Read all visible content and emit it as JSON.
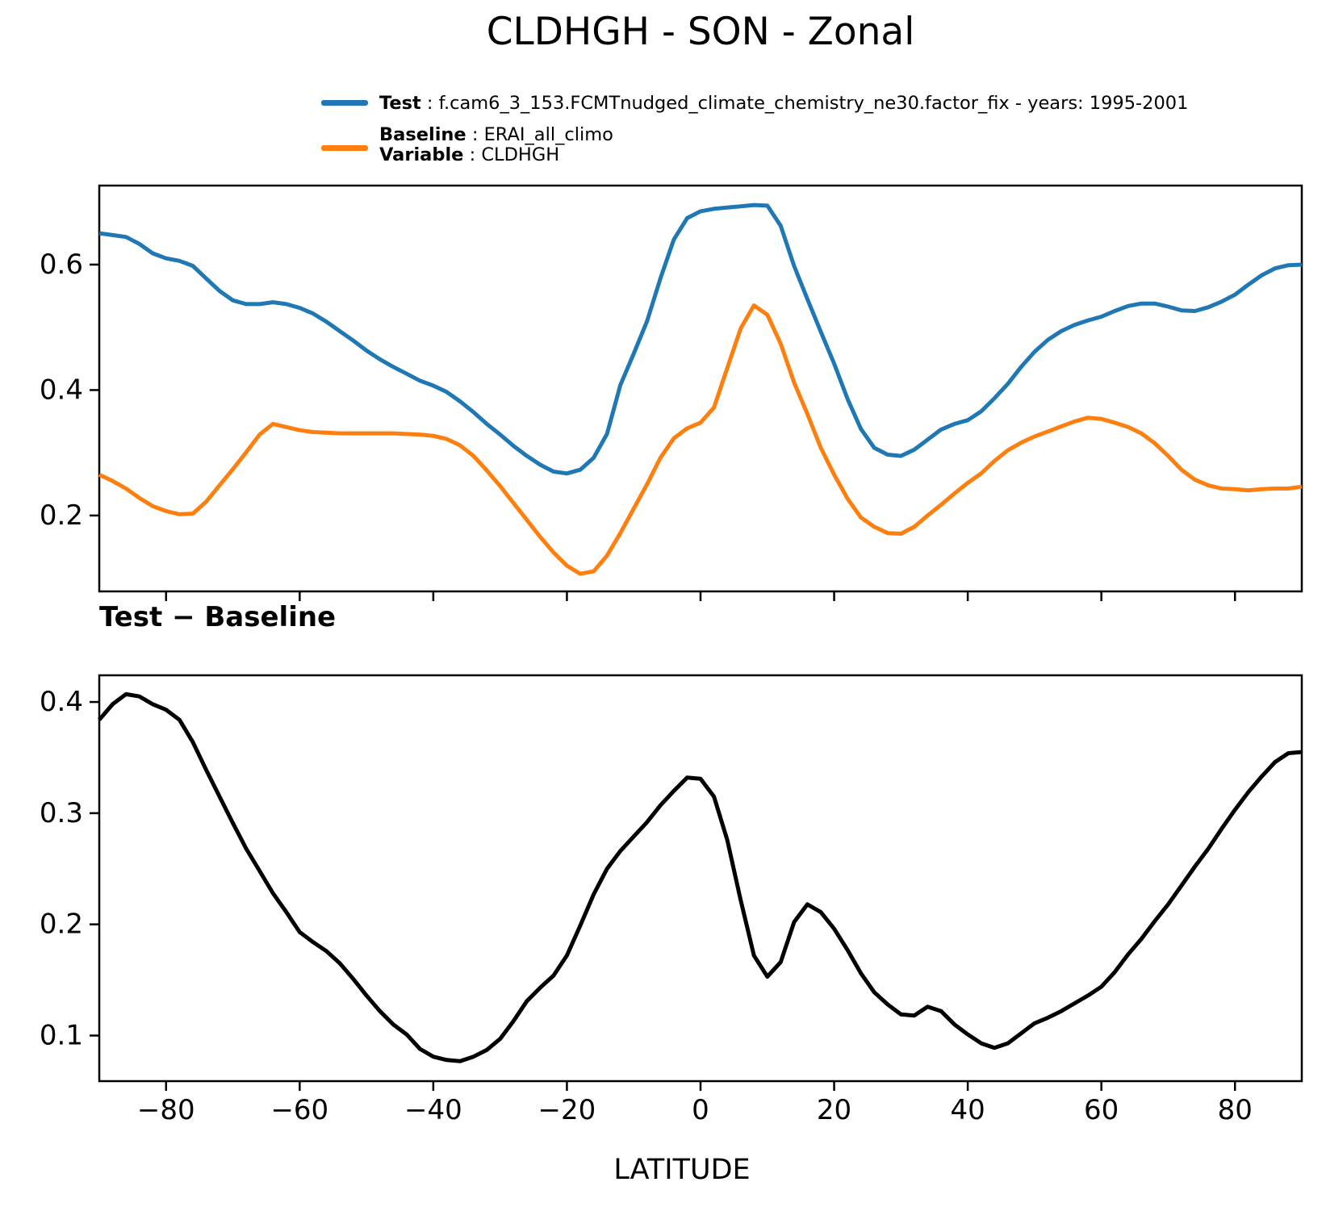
{
  "title": "CLDHGH - SON - Zonal",
  "legend": {
    "test_label": "Test",
    "test_rest": " : f.cam6_3_153.FCMTnudged_climate_chemistry_ne30.factor_fix - years: 1995-2001",
    "baseline_label": "Baseline",
    "baseline_rest": " : ERAI_all_climo",
    "variable_label": "Variable",
    "variable_rest": " : CLDHGH"
  },
  "colors": {
    "test": "#1f77b4",
    "baseline": "#ff7f0e",
    "diff": "#000000"
  },
  "chart_data": [
    {
      "type": "line",
      "title": "",
      "xlabel": "",
      "ylabel": "",
      "xlim": [
        -90,
        90
      ],
      "ylim": [
        0.079,
        0.726
      ],
      "xticks": [
        -80,
        -60,
        -40,
        -20,
        0,
        20,
        40,
        60,
        80
      ],
      "xtick_labels_visible": false,
      "yticks": [
        0.2,
        0.4,
        0.6
      ],
      "grid": false,
      "legend_position": "above-figure",
      "x": [
        -90,
        -88,
        -86,
        -84,
        -82,
        -80,
        -78,
        -76,
        -74,
        -72,
        -70,
        -68,
        -66,
        -64,
        -62,
        -60,
        -58,
        -56,
        -54,
        -52,
        -50,
        -48,
        -46,
        -44,
        -42,
        -40,
        -38,
        -36,
        -34,
        -32,
        -30,
        -28,
        -26,
        -24,
        -22,
        -20,
        -18,
        -16,
        -14,
        -12,
        -10,
        -8,
        -6,
        -4,
        -2,
        0,
        2,
        4,
        6,
        8,
        10,
        12,
        14,
        16,
        18,
        20,
        22,
        24,
        26,
        28,
        30,
        32,
        34,
        36,
        38,
        40,
        42,
        44,
        46,
        48,
        50,
        52,
        54,
        56,
        58,
        60,
        62,
        64,
        66,
        68,
        70,
        72,
        74,
        76,
        78,
        80,
        82,
        84,
        86,
        88,
        90
      ],
      "series": [
        {
          "name": "Test",
          "values": [
            0.65,
            0.647,
            0.644,
            0.633,
            0.618,
            0.61,
            0.606,
            0.598,
            0.578,
            0.558,
            0.543,
            0.537,
            0.537,
            0.54,
            0.537,
            0.531,
            0.522,
            0.509,
            0.494,
            0.479,
            0.463,
            0.449,
            0.437,
            0.426,
            0.415,
            0.407,
            0.397,
            0.382,
            0.365,
            0.346,
            0.329,
            0.311,
            0.295,
            0.281,
            0.27,
            0.267,
            0.273,
            0.292,
            0.33,
            0.408,
            0.458,
            0.51,
            0.578,
            0.64,
            0.674,
            0.685,
            0.689,
            0.691,
            0.693,
            0.695,
            0.694,
            0.662,
            0.598,
            0.545,
            0.493,
            0.442,
            0.386,
            0.338,
            0.308,
            0.297,
            0.295,
            0.305,
            0.321,
            0.337,
            0.346,
            0.352,
            0.366,
            0.387,
            0.41,
            0.437,
            0.461,
            0.48,
            0.494,
            0.504,
            0.511,
            0.517,
            0.526,
            0.534,
            0.538,
            0.538,
            0.533,
            0.527,
            0.526,
            0.532,
            0.541,
            0.552,
            0.568,
            0.583,
            0.594,
            0.599,
            0.6
          ]
        },
        {
          "name": "Baseline",
          "values": [
            0.265,
            0.255,
            0.243,
            0.228,
            0.215,
            0.207,
            0.202,
            0.203,
            0.222,
            0.248,
            0.274,
            0.301,
            0.329,
            0.346,
            0.341,
            0.336,
            0.333,
            0.332,
            0.331,
            0.331,
            0.331,
            0.331,
            0.331,
            0.33,
            0.329,
            0.327,
            0.322,
            0.312,
            0.295,
            0.272,
            0.247,
            0.22,
            0.193,
            0.166,
            0.141,
            0.12,
            0.107,
            0.111,
            0.136,
            0.172,
            0.211,
            0.25,
            0.292,
            0.323,
            0.339,
            0.348,
            0.372,
            0.435,
            0.498,
            0.535,
            0.52,
            0.474,
            0.412,
            0.362,
            0.308,
            0.265,
            0.227,
            0.197,
            0.182,
            0.172,
            0.171,
            0.182,
            0.2,
            0.217,
            0.235,
            0.252,
            0.267,
            0.287,
            0.304,
            0.316,
            0.326,
            0.334,
            0.342,
            0.35,
            0.356,
            0.354,
            0.348,
            0.341,
            0.331,
            0.315,
            0.295,
            0.273,
            0.257,
            0.248,
            0.243,
            0.242,
            0.24,
            0.242,
            0.243,
            0.243,
            0.246
          ]
        }
      ]
    },
    {
      "type": "line",
      "title": "Test − Baseline",
      "xlabel": "LATITUDE",
      "ylabel": "",
      "xlim": [
        -90,
        90
      ],
      "ylim": [
        0.059,
        0.424
      ],
      "xticks": [
        -80,
        -60,
        -40,
        -20,
        0,
        20,
        40,
        60,
        80
      ],
      "xtick_labels_visible": true,
      "yticks": [
        0.1,
        0.2,
        0.3,
        0.4
      ],
      "grid": false,
      "x": [
        -90,
        -88,
        -86,
        -84,
        -82,
        -80,
        -78,
        -76,
        -74,
        -72,
        -70,
        -68,
        -66,
        -64,
        -62,
        -60,
        -58,
        -56,
        -54,
        -52,
        -50,
        -48,
        -46,
        -44,
        -42,
        -40,
        -38,
        -36,
        -34,
        -32,
        -30,
        -28,
        -26,
        -24,
        -22,
        -20,
        -18,
        -16,
        -14,
        -12,
        -10,
        -8,
        -6,
        -4,
        -2,
        0,
        2,
        4,
        6,
        8,
        10,
        12,
        14,
        16,
        18,
        20,
        22,
        24,
        26,
        28,
        30,
        32,
        34,
        36,
        38,
        40,
        42,
        44,
        46,
        48,
        50,
        52,
        54,
        56,
        58,
        60,
        62,
        64,
        66,
        68,
        70,
        72,
        74,
        76,
        78,
        80,
        82,
        84,
        86,
        88,
        90
      ],
      "series": [
        {
          "name": "Test − Baseline",
          "values": [
            0.384,
            0.398,
            0.407,
            0.405,
            0.398,
            0.393,
            0.384,
            0.364,
            0.339,
            0.315,
            0.291,
            0.268,
            0.248,
            0.228,
            0.211,
            0.193,
            0.184,
            0.176,
            0.165,
            0.151,
            0.136,
            0.122,
            0.11,
            0.101,
            0.088,
            0.081,
            0.078,
            0.077,
            0.081,
            0.087,
            0.097,
            0.113,
            0.131,
            0.143,
            0.154,
            0.172,
            0.199,
            0.227,
            0.25,
            0.266,
            0.279,
            0.292,
            0.307,
            0.32,
            0.332,
            0.331,
            0.315,
            0.276,
            0.222,
            0.172,
            0.153,
            0.166,
            0.202,
            0.218,
            0.211,
            0.196,
            0.177,
            0.156,
            0.139,
            0.128,
            0.119,
            0.118,
            0.126,
            0.122,
            0.11,
            0.101,
            0.093,
            0.089,
            0.093,
            0.102,
            0.111,
            0.116,
            0.122,
            0.129,
            0.136,
            0.144,
            0.157,
            0.173,
            0.187,
            0.203,
            0.218,
            0.235,
            0.252,
            0.268,
            0.286,
            0.303,
            0.319,
            0.333,
            0.346,
            0.354,
            0.355
          ]
        }
      ]
    }
  ]
}
